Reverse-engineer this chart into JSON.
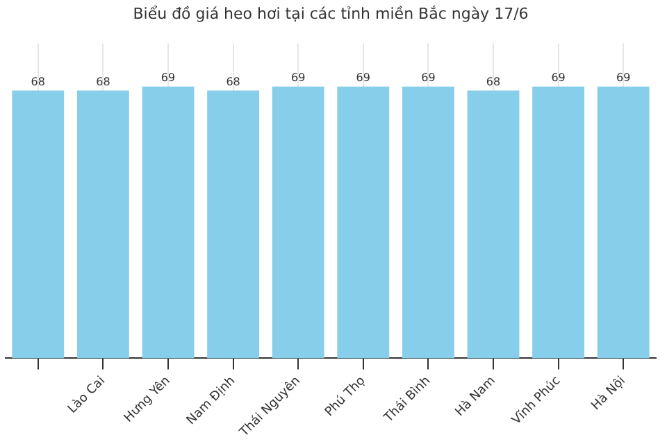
{
  "chart_data": {
    "type": "bar",
    "title": "Biểu đồ giá heo hơi tại các tỉnh miền Bắc ngày 17/6",
    "categories": [
      null,
      "Lào Cai",
      "Hưng Yên",
      "Nam Định",
      "Thái Nguyên",
      "Phú Thọ",
      "Thái Bình",
      "Hà Nam",
      "Vĩnh Phúc",
      "Hà Nội"
    ],
    "values": [
      68,
      68,
      69,
      68,
      69,
      69,
      69,
      68,
      69,
      69
    ],
    "color": "#87ceeb",
    "ylim": [
      0,
      80
    ],
    "tick_labels": "x",
    "grid": "x",
    "data_labels": true
  }
}
